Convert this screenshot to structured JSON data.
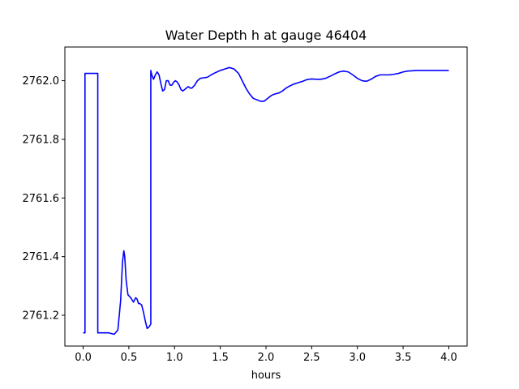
{
  "chart_data": {
    "type": "line",
    "title": "Water Depth h at gauge 46404",
    "xlabel": "hours",
    "ylabel": "",
    "xlim": [
      -0.2,
      4.2
    ],
    "ylim": [
      2761.095,
      2762.115
    ],
    "xticks": [
      0.0,
      0.5,
      1.0,
      1.5,
      2.0,
      2.5,
      3.0,
      3.5,
      4.0
    ],
    "xtick_labels": [
      "0.0",
      "0.5",
      "1.0",
      "1.5",
      "2.0",
      "2.5",
      "3.0",
      "3.5",
      "4.0"
    ],
    "yticks": [
      2761.2,
      2761.4,
      2761.6,
      2761.8,
      2762.0
    ],
    "ytick_labels": [
      "2761.2",
      "2761.4",
      "2761.6",
      "2761.8",
      "2762.0"
    ],
    "grid": false,
    "series": [
      {
        "color": "#0000ff",
        "x": [
          0.0,
          0.02,
          0.02,
          0.16,
          0.16,
          0.18,
          0.22,
          0.28,
          0.34,
          0.38,
          0.41,
          0.43,
          0.445,
          0.455,
          0.47,
          0.49,
          0.52,
          0.55,
          0.575,
          0.59,
          0.605,
          0.62,
          0.64,
          0.66,
          0.68,
          0.7,
          0.72,
          0.74,
          0.74,
          0.75,
          0.77,
          0.79,
          0.81,
          0.83,
          0.85,
          0.87,
          0.89,
          0.91,
          0.93,
          0.95,
          0.97,
          0.99,
          1.01,
          1.03,
          1.05,
          1.07,
          1.09,
          1.11,
          1.13,
          1.15,
          1.17,
          1.19,
          1.22,
          1.25,
          1.28,
          1.32,
          1.36,
          1.4,
          1.45,
          1.5,
          1.55,
          1.6,
          1.65,
          1.7,
          1.74,
          1.78,
          1.82,
          1.86,
          1.9,
          1.94,
          1.98,
          2.02,
          2.06,
          2.1,
          2.14,
          2.18,
          2.22,
          2.26,
          2.3,
          2.35,
          2.4,
          2.45,
          2.5,
          2.55,
          2.6,
          2.65,
          2.7,
          2.75,
          2.8,
          2.85,
          2.9,
          2.95,
          3.0,
          3.05,
          3.1,
          3.15,
          3.2,
          3.25,
          3.3,
          3.35,
          3.4,
          3.45,
          3.5,
          3.55,
          3.6,
          3.65,
          3.7,
          3.75,
          3.8,
          3.85,
          3.9,
          3.95,
          4.0
        ],
        "y": [
          2761.14,
          2761.14,
          2762.025,
          2762.025,
          2761.14,
          2761.14,
          2761.14,
          2761.14,
          2761.135,
          2761.15,
          2761.25,
          2761.38,
          2761.42,
          2761.4,
          2761.32,
          2761.27,
          2761.26,
          2761.245,
          2761.26,
          2761.255,
          2761.24,
          2761.24,
          2761.235,
          2761.21,
          2761.18,
          2761.155,
          2761.16,
          2761.17,
          2762.035,
          2762.02,
          2762.005,
          2762.02,
          2762.03,
          2762.02,
          2761.99,
          2761.965,
          2761.97,
          2762.0,
          2762.0,
          2761.985,
          2761.985,
          2761.995,
          2762.0,
          2761.995,
          2761.985,
          2761.97,
          2761.965,
          2761.97,
          2761.975,
          2761.98,
          2761.975,
          2761.975,
          2761.985,
          2762.0,
          2762.008,
          2762.01,
          2762.012,
          2762.02,
          2762.028,
          2762.035,
          2762.04,
          2762.045,
          2762.04,
          2762.025,
          2762.0,
          2761.975,
          2761.955,
          2761.94,
          2761.935,
          2761.93,
          2761.93,
          2761.94,
          2761.95,
          2761.955,
          2761.958,
          2761.965,
          2761.975,
          2761.982,
          2761.988,
          2761.993,
          2761.998,
          2762.004,
          2762.006,
          2762.005,
          2762.005,
          2762.008,
          2762.015,
          2762.023,
          2762.03,
          2762.033,
          2762.03,
          2762.02,
          2762.008,
          2762.0,
          2761.998,
          2762.005,
          2762.015,
          2762.02,
          2762.02,
          2762.02,
          2762.022,
          2762.025,
          2762.03,
          2762.033,
          2762.034,
          2762.035,
          2762.035,
          2762.035,
          2762.035,
          2762.035,
          2762.035,
          2762.035,
          2762.035
        ]
      }
    ]
  }
}
